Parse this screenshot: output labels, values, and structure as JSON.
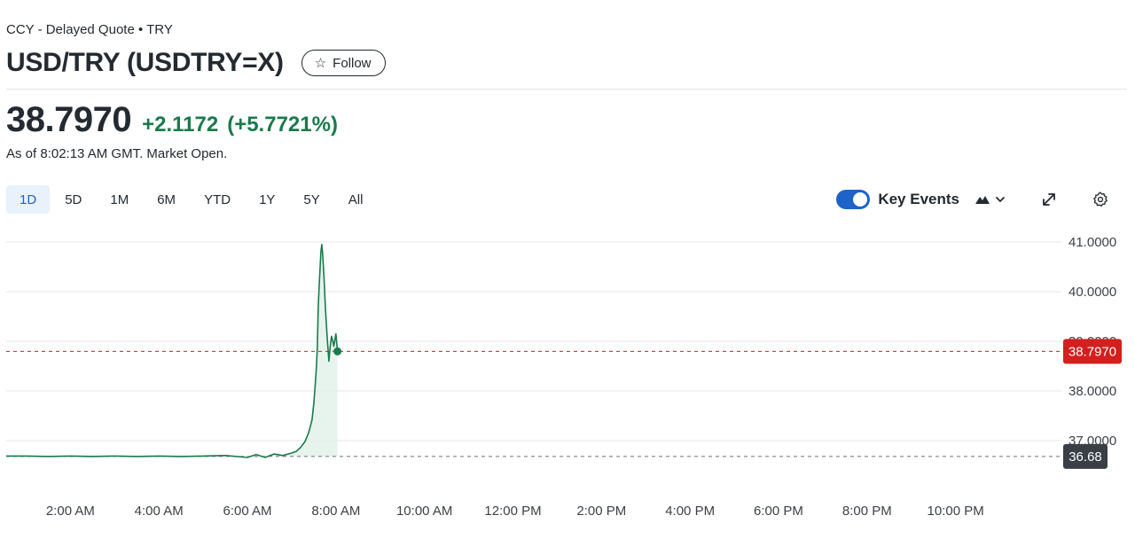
{
  "header": {
    "exchange_line": "CCY - Delayed Quote • TRY",
    "title": "USD/TRY (USDTRY=X)",
    "follow_label": "Follow"
  },
  "quote": {
    "price": "38.7970",
    "change": "+2.1172",
    "change_percent": "(+5.7721%)",
    "as_of": "As of 8:02:13 AM GMT. Market Open."
  },
  "range_tabs": [
    {
      "label": "1D",
      "active": true
    },
    {
      "label": "5D",
      "active": false
    },
    {
      "label": "1M",
      "active": false
    },
    {
      "label": "6M",
      "active": false
    },
    {
      "label": "YTD",
      "active": false
    },
    {
      "label": "1Y",
      "active": false
    },
    {
      "label": "5Y",
      "active": false
    },
    {
      "label": "All",
      "active": false
    }
  ],
  "toolbar": {
    "key_events_label": "Key Events",
    "key_events_on": true,
    "chart_type_icon": "mountain-icon",
    "expand_icon": "expand-icon",
    "settings_icon": "gear-icon"
  },
  "colors": {
    "up": "#1a7a4c",
    "line": "#1a7a4c",
    "area": "#e3f1ea",
    "current_price_badge": "#d41f1f",
    "prev_close_badge": "#3a3f46",
    "active_tab_bg": "#e8f1fc",
    "accent": "#1e63c9"
  },
  "chart_data": {
    "type": "area",
    "title": "",
    "xlabel": "",
    "ylabel": "",
    "x_ticks": [
      "2:00 AM",
      "4:00 AM",
      "6:00 AM",
      "8:00 AM",
      "10:00 AM",
      "12:00 PM",
      "2:00 PM",
      "4:00 PM",
      "6:00 PM",
      "8:00 PM",
      "10:00 PM"
    ],
    "y_ticks": [
      "41.0000",
      "40.0000",
      "39.0000",
      "38.0000",
      "37.0000"
    ],
    "ylim": [
      36.5,
      41.0
    ],
    "x_range_hours": [
      0.55,
      23.45
    ],
    "grid": true,
    "current_price": {
      "value": 38.797,
      "label": "38.7970"
    },
    "previous_close": {
      "value": 36.68,
      "label": "36.68"
    },
    "series": [
      {
        "x": [
          0.55,
          1.0,
          1.5,
          2.0,
          2.5,
          3.0,
          3.5,
          4.0,
          4.5,
          5.0,
          5.5,
          6.0,
          6.2,
          6.4,
          6.6,
          6.8,
          7.0,
          7.1,
          7.2,
          7.3,
          7.38,
          7.42,
          7.46,
          7.5,
          7.53,
          7.56,
          7.58,
          7.6,
          7.62,
          7.64,
          7.66,
          7.68,
          7.7,
          7.72,
          7.74,
          7.76,
          7.8,
          7.84,
          7.87,
          7.9,
          7.93,
          7.95,
          7.98,
          8.0,
          8.035
        ],
        "y": [
          36.69,
          36.69,
          36.68,
          36.69,
          36.68,
          36.69,
          36.68,
          36.69,
          36.68,
          36.69,
          36.7,
          36.66,
          36.72,
          36.66,
          36.73,
          36.7,
          36.75,
          36.78,
          36.86,
          36.98,
          37.15,
          37.28,
          37.42,
          37.75,
          38.1,
          38.5,
          38.9,
          39.7,
          40.1,
          40.45,
          40.8,
          40.95,
          40.75,
          40.45,
          40.1,
          39.7,
          39.1,
          38.6,
          38.9,
          39.1,
          39.0,
          38.9,
          39.05,
          39.15,
          38.797
        ]
      }
    ]
  }
}
